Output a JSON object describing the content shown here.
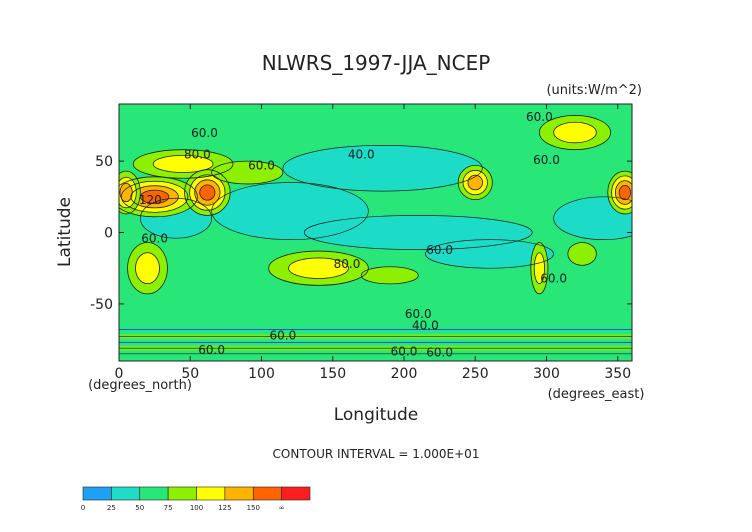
{
  "chart_data": {
    "type": "heatmap",
    "title": "NLWRS_1997-JJA_NCEP",
    "units_note": "(units:W/m^2)",
    "xlabel": "Longitude",
    "ylabel": "Latitude",
    "x_unit_note": "(degrees_east)",
    "y_unit_note": "(degrees_north)",
    "xlim": [
      0,
      360
    ],
    "ylim": [
      -90,
      90
    ],
    "xticks": [
      "0",
      "50",
      "100",
      "150",
      "200",
      "250",
      "300",
      "350"
    ],
    "xtick_values": [
      0,
      50,
      100,
      150,
      200,
      250,
      300,
      350
    ],
    "yticks": [
      "50",
      "0",
      "-50"
    ],
    "ytick_values": [
      50,
      0,
      -50
    ],
    "contour_interval_text": "CONTOUR INTERVAL = 1.000E+01",
    "contour_labels": [
      {
        "text": "60.0",
        "lon": 60,
        "lat": 67
      },
      {
        "text": "80.0",
        "lon": 55,
        "lat": 52
      },
      {
        "text": "60.0",
        "lon": 100,
        "lat": 44
      },
      {
        "text": "120",
        "lon": 22,
        "lat": 20
      },
      {
        "text": "60.0",
        "lon": 25,
        "lat": -7
      },
      {
        "text": "40.0",
        "lon": 170,
        "lat": 52
      },
      {
        "text": "60.0",
        "lon": 225,
        "lat": -15
      },
      {
        "text": "80.0",
        "lon": 160,
        "lat": -25
      },
      {
        "text": "60.0",
        "lon": 300,
        "lat": 48
      },
      {
        "text": "60.0",
        "lon": 295,
        "lat": 78
      },
      {
        "text": "60.0",
        "lon": 305,
        "lat": -35
      },
      {
        "text": "60.0",
        "lon": 210,
        "lat": -60
      },
      {
        "text": "40.0",
        "lon": 215,
        "lat": -68
      },
      {
        "text": "60.0",
        "lon": 115,
        "lat": -75
      },
      {
        "text": "60.0",
        "lon": 65,
        "lat": -85
      },
      {
        "text": "60.0",
        "lon": 200,
        "lat": -86
      },
      {
        "text": "60.0",
        "lon": 225,
        "lat": -87
      }
    ],
    "features": [
      {
        "lon": 25,
        "lat": 25,
        "value": 155,
        "rx": 30,
        "ry": 14
      },
      {
        "lon": 62,
        "lat": 28,
        "value": 160,
        "rx": 16,
        "ry": 16
      },
      {
        "lon": 45,
        "lat": 48,
        "value": 105,
        "rx": 35,
        "ry": 10
      },
      {
        "lon": 90,
        "lat": 42,
        "value": 95,
        "rx": 25,
        "ry": 8
      },
      {
        "lon": 355,
        "lat": 28,
        "value": 150,
        "rx": 12,
        "ry": 15
      },
      {
        "lon": 5,
        "lat": 28,
        "value": 145,
        "rx": 10,
        "ry": 15
      },
      {
        "lon": 250,
        "lat": 35,
        "value": 125,
        "rx": 12,
        "ry": 12
      },
      {
        "lon": 20,
        "lat": -25,
        "value": 115,
        "rx": 14,
        "ry": 18
      },
      {
        "lon": 140,
        "lat": -25,
        "value": 115,
        "rx": 35,
        "ry": 12
      },
      {
        "lon": 190,
        "lat": -30,
        "value": 85,
        "rx": 20,
        "ry": 6
      },
      {
        "lon": 295,
        "lat": -25,
        "value": 120,
        "rx": 6,
        "ry": 18
      },
      {
        "lon": 325,
        "lat": -15,
        "value": 90,
        "rx": 10,
        "ry": 8
      },
      {
        "lon": 320,
        "lat": 70,
        "value": 100,
        "rx": 25,
        "ry": 12
      },
      {
        "lon": 300,
        "lat": 60,
        "value": 60,
        "rx": 25,
        "ry": 10
      }
    ],
    "clear_zones": [
      {
        "lon": 185,
        "lat": 45,
        "rx": 70,
        "ry": 16
      },
      {
        "lon": 120,
        "lat": 15,
        "rx": 55,
        "ry": 20
      },
      {
        "lon": 210,
        "lat": 0,
        "rx": 80,
        "ry": 12
      },
      {
        "lon": 40,
        "lat": 10,
        "rx": 25,
        "ry": 14
      },
      {
        "lon": 260,
        "lat": -15,
        "rx": 45,
        "ry": 10
      },
      {
        "lon": 340,
        "lat": 10,
        "rx": 35,
        "ry": 15
      }
    ],
    "colorbar": {
      "boundaries": [
        0,
        25,
        50,
        75,
        100,
        125,
        150
      ],
      "labels": [
        "0",
        "25",
        "50",
        "75",
        "100",
        "125",
        "150",
        "∞"
      ],
      "colors": [
        "#1ea0f5",
        "#1edcc8",
        "#28e678",
        "#8cf000",
        "#ffff00",
        "#ffb400",
        "#ff6400",
        "#ff1e1e"
      ]
    }
  }
}
